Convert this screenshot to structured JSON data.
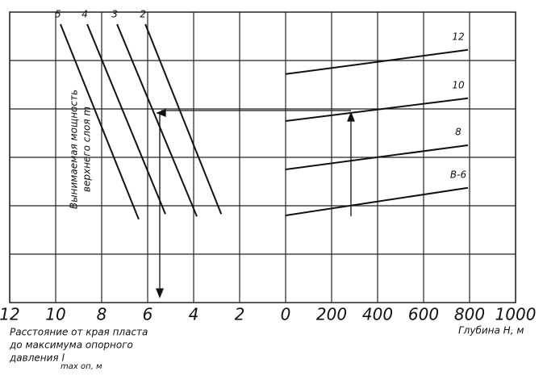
{
  "chart_data": [
    {
      "type": "line",
      "x_label_lines": [
        "Расстояние от края пласта",
        "до максимума опорного",
        "давления l",
        "max оп, м"
      ],
      "y_label_lines": [
        "Вынимаемая мощность",
        "верхнего слоя m"
      ],
      "xlim": [
        12,
        0
      ],
      "xticks": [
        12,
        10,
        8,
        6,
        4,
        2
      ],
      "ylim": [
        0,
        6
      ],
      "series": [
        {
          "name": "5",
          "color": "#111",
          "x": [
            9.79,
            6.39
          ],
          "values": [
            5.75,
            1.72
          ]
        },
        {
          "name": "4",
          "color": "#111",
          "x": [
            8.63,
            5.23
          ],
          "values": [
            5.75,
            1.83
          ]
        },
        {
          "name": "3",
          "color": "#111",
          "x": [
            7.33,
            3.86
          ],
          "values": [
            5.75,
            1.78
          ]
        },
        {
          "name": "2",
          "color": "#111",
          "x": [
            6.1,
            2.8
          ],
          "values": [
            5.75,
            1.83
          ]
        }
      ]
    },
    {
      "type": "line",
      "x_label": "Глубина H, м",
      "xlim": [
        0,
        1000
      ],
      "xticks": [
        0,
        200,
        400,
        600,
        800,
        1000
      ],
      "ylim": [
        0,
        6
      ],
      "series": [
        {
          "name": "12",
          "color": "#111",
          "x": [
            0,
            793
          ],
          "values": [
            4.72,
            5.22
          ]
        },
        {
          "name": "10",
          "color": "#111",
          "x": [
            0,
            793
          ],
          "values": [
            3.75,
            4.22
          ]
        },
        {
          "name": "8",
          "color": "#111",
          "x": [
            0,
            793
          ],
          "values": [
            2.75,
            3.25
          ]
        },
        {
          "name": "В-6",
          "color": "#111",
          "x": [
            0,
            793
          ],
          "values": [
            1.8,
            2.37
          ]
        }
      ]
    }
  ]
}
